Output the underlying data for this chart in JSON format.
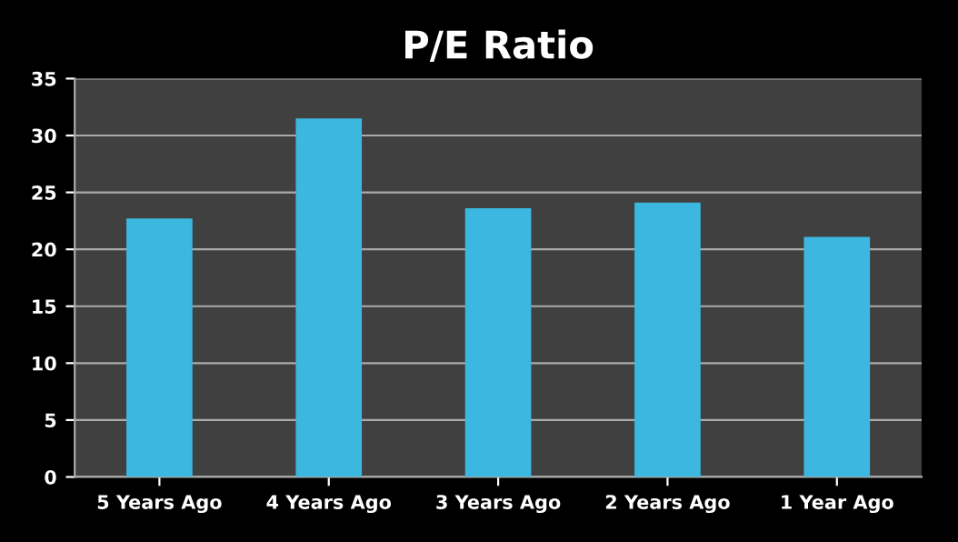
{
  "chart_data": {
    "type": "bar",
    "title": "P/E Ratio",
    "categories": [
      "5 Years Ago",
      "4 Years Ago",
      "3 Years Ago",
      "2 Years Ago",
      "1 Year Ago"
    ],
    "values": [
      22.7,
      31.5,
      23.6,
      24.1,
      21.1
    ],
    "color": "#3cb8e0",
    "ylim": [
      0,
      35
    ],
    "yticks": [
      0,
      5,
      10,
      15,
      20,
      25,
      30,
      35
    ],
    "grid": "y",
    "legend": false
  }
}
